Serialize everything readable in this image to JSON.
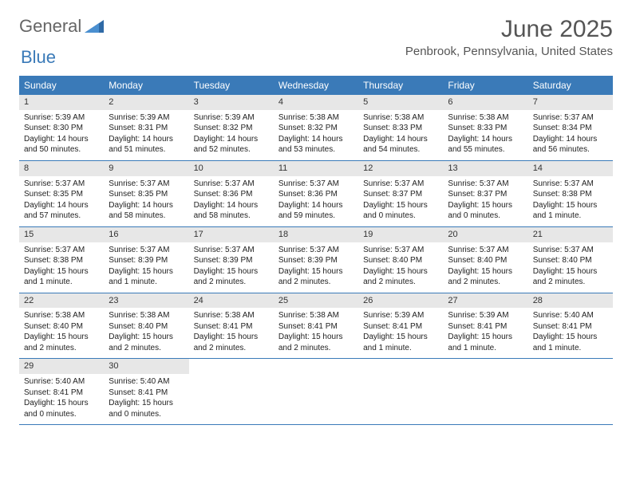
{
  "logo": {
    "word1": "General",
    "word2": "Blue"
  },
  "title": "June 2025",
  "location": "Penbrook, Pennsylvania, United States",
  "colors": {
    "header_bg": "#3a7ab8",
    "header_text": "#ffffff",
    "daynum_bg": "#e7e7e7",
    "border": "#3a7ab8",
    "text": "#222222",
    "title_text": "#555555",
    "logo_gray": "#666666",
    "logo_blue": "#3a7ab8"
  },
  "daysOfWeek": [
    "Sunday",
    "Monday",
    "Tuesday",
    "Wednesday",
    "Thursday",
    "Friday",
    "Saturday"
  ],
  "days": [
    {
      "n": 1,
      "sr": "5:39 AM",
      "ss": "8:30 PM",
      "dl": "14 hours and 50 minutes."
    },
    {
      "n": 2,
      "sr": "5:39 AM",
      "ss": "8:31 PM",
      "dl": "14 hours and 51 minutes."
    },
    {
      "n": 3,
      "sr": "5:39 AM",
      "ss": "8:32 PM",
      "dl": "14 hours and 52 minutes."
    },
    {
      "n": 4,
      "sr": "5:38 AM",
      "ss": "8:32 PM",
      "dl": "14 hours and 53 minutes."
    },
    {
      "n": 5,
      "sr": "5:38 AM",
      "ss": "8:33 PM",
      "dl": "14 hours and 54 minutes."
    },
    {
      "n": 6,
      "sr": "5:38 AM",
      "ss": "8:33 PM",
      "dl": "14 hours and 55 minutes."
    },
    {
      "n": 7,
      "sr": "5:37 AM",
      "ss": "8:34 PM",
      "dl": "14 hours and 56 minutes."
    },
    {
      "n": 8,
      "sr": "5:37 AM",
      "ss": "8:35 PM",
      "dl": "14 hours and 57 minutes."
    },
    {
      "n": 9,
      "sr": "5:37 AM",
      "ss": "8:35 PM",
      "dl": "14 hours and 58 minutes."
    },
    {
      "n": 10,
      "sr": "5:37 AM",
      "ss": "8:36 PM",
      "dl": "14 hours and 58 minutes."
    },
    {
      "n": 11,
      "sr": "5:37 AM",
      "ss": "8:36 PM",
      "dl": "14 hours and 59 minutes."
    },
    {
      "n": 12,
      "sr": "5:37 AM",
      "ss": "8:37 PM",
      "dl": "15 hours and 0 minutes."
    },
    {
      "n": 13,
      "sr": "5:37 AM",
      "ss": "8:37 PM",
      "dl": "15 hours and 0 minutes."
    },
    {
      "n": 14,
      "sr": "5:37 AM",
      "ss": "8:38 PM",
      "dl": "15 hours and 1 minute."
    },
    {
      "n": 15,
      "sr": "5:37 AM",
      "ss": "8:38 PM",
      "dl": "15 hours and 1 minute."
    },
    {
      "n": 16,
      "sr": "5:37 AM",
      "ss": "8:39 PM",
      "dl": "15 hours and 1 minute."
    },
    {
      "n": 17,
      "sr": "5:37 AM",
      "ss": "8:39 PM",
      "dl": "15 hours and 2 minutes."
    },
    {
      "n": 18,
      "sr": "5:37 AM",
      "ss": "8:39 PM",
      "dl": "15 hours and 2 minutes."
    },
    {
      "n": 19,
      "sr": "5:37 AM",
      "ss": "8:40 PM",
      "dl": "15 hours and 2 minutes."
    },
    {
      "n": 20,
      "sr": "5:37 AM",
      "ss": "8:40 PM",
      "dl": "15 hours and 2 minutes."
    },
    {
      "n": 21,
      "sr": "5:37 AM",
      "ss": "8:40 PM",
      "dl": "15 hours and 2 minutes."
    },
    {
      "n": 22,
      "sr": "5:38 AM",
      "ss": "8:40 PM",
      "dl": "15 hours and 2 minutes."
    },
    {
      "n": 23,
      "sr": "5:38 AM",
      "ss": "8:40 PM",
      "dl": "15 hours and 2 minutes."
    },
    {
      "n": 24,
      "sr": "5:38 AM",
      "ss": "8:41 PM",
      "dl": "15 hours and 2 minutes."
    },
    {
      "n": 25,
      "sr": "5:38 AM",
      "ss": "8:41 PM",
      "dl": "15 hours and 2 minutes."
    },
    {
      "n": 26,
      "sr": "5:39 AM",
      "ss": "8:41 PM",
      "dl": "15 hours and 1 minute."
    },
    {
      "n": 27,
      "sr": "5:39 AM",
      "ss": "8:41 PM",
      "dl": "15 hours and 1 minute."
    },
    {
      "n": 28,
      "sr": "5:40 AM",
      "ss": "8:41 PM",
      "dl": "15 hours and 1 minute."
    },
    {
      "n": 29,
      "sr": "5:40 AM",
      "ss": "8:41 PM",
      "dl": "15 hours and 0 minutes."
    },
    {
      "n": 30,
      "sr": "5:40 AM",
      "ss": "8:41 PM",
      "dl": "15 hours and 0 minutes."
    }
  ],
  "labels": {
    "sunrise": "Sunrise:",
    "sunset": "Sunset:",
    "daylight": "Daylight:"
  }
}
